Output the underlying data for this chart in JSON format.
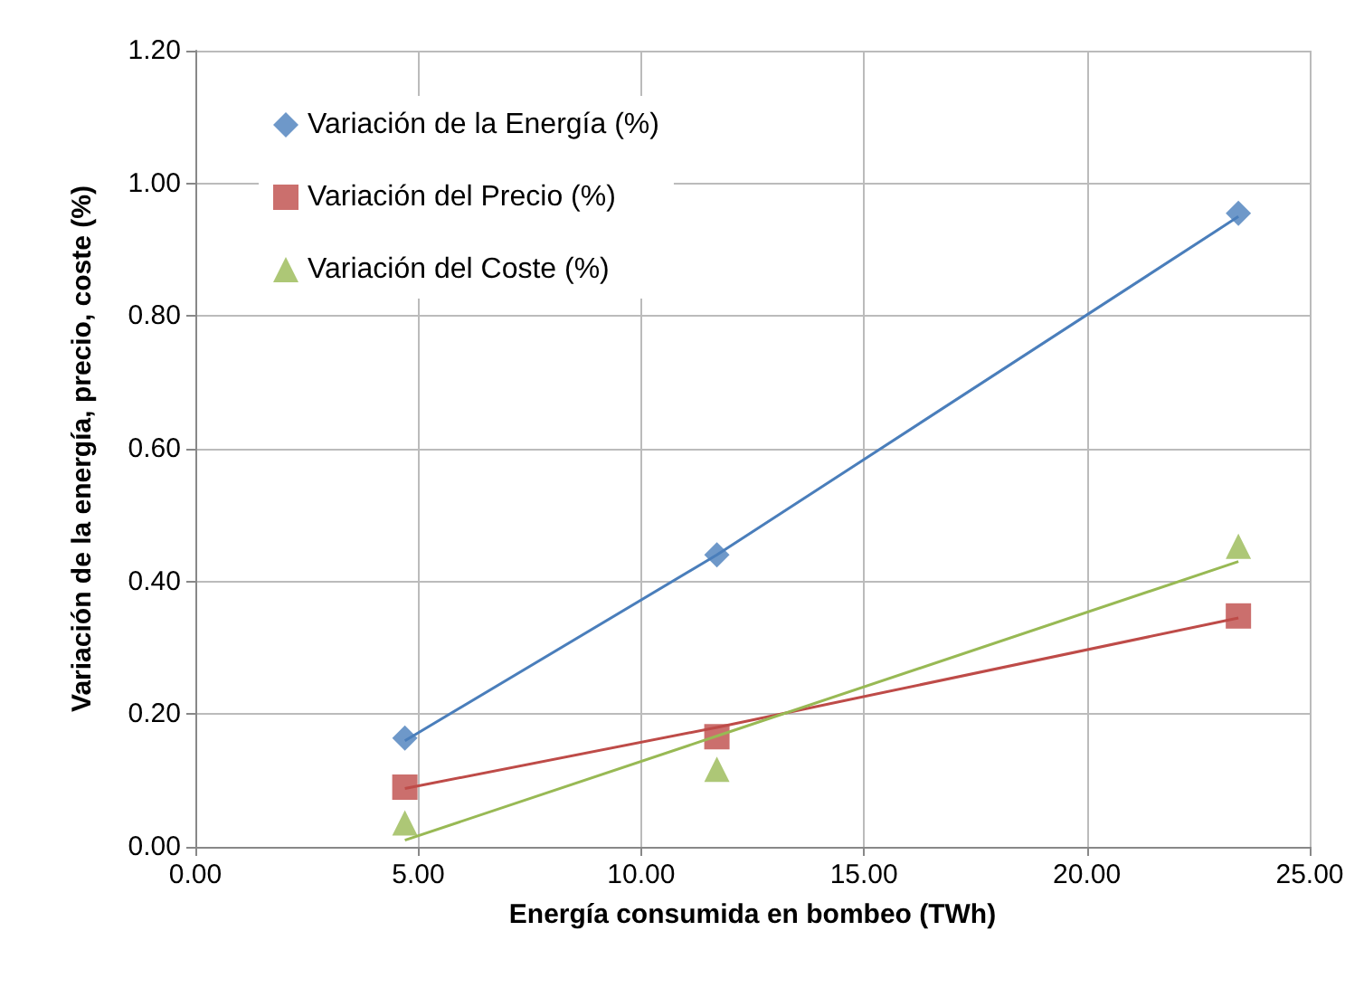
{
  "chart_data": {
    "type": "scatter",
    "xlabel": "Energía consumida en bombeo (TWh)",
    "ylabel": "Variación de la energía, precio, coste (%)",
    "x": [
      4.7,
      11.7,
      23.4
    ],
    "series": [
      {
        "name": "Variación de la Energía (%)",
        "color": "#4a7ebb",
        "marker": "diamond",
        "values": [
          0.164,
          0.44,
          0.955
        ]
      },
      {
        "name": "Variación del Precio (%)",
        "color": "#be4b48",
        "marker": "square",
        "values": [
          0.09,
          0.166,
          0.348
        ]
      },
      {
        "name": "Variación del Coste (%)",
        "color": "#98b954",
        "marker": "triangle",
        "values": [
          0.036,
          0.117,
          0.453
        ]
      },
      {
        "type": "line",
        "color": "#4a7ebb",
        "marker": "none",
        "values": [
          0.16,
          0.44,
          0.95
        ]
      },
      {
        "type": "line",
        "color": "#be4b48",
        "marker": "none",
        "values": [
          0.088,
          0.18,
          0.345
        ]
      },
      {
        "type": "line",
        "color": "#98b954",
        "marker": "none",
        "values": [
          0.01,
          0.167,
          0.43
        ]
      }
    ],
    "xlim": [
      0,
      25
    ],
    "xticks": [
      {
        "value": 0,
        "label": "0.00"
      },
      {
        "value": 5,
        "label": "5.00"
      },
      {
        "value": 10,
        "label": "10.00"
      },
      {
        "value": 15,
        "label": "15.00"
      },
      {
        "value": 20,
        "label": "20.00"
      },
      {
        "value": 25,
        "label": "25.00"
      }
    ],
    "ylim": [
      0,
      1.2
    ],
    "yticks": [
      {
        "value": 0,
        "label": "0.00"
      },
      {
        "value": 0.2,
        "label": "0.20"
      },
      {
        "value": 0.4,
        "label": "0.40"
      },
      {
        "value": 0.6,
        "label": "0.60"
      },
      {
        "value": 0.8,
        "label": "0.80"
      },
      {
        "value": 1,
        "label": "1.00"
      },
      {
        "value": 1.2,
        "label": "1.20"
      }
    ],
    "grid": true,
    "legend": "top left"
  }
}
